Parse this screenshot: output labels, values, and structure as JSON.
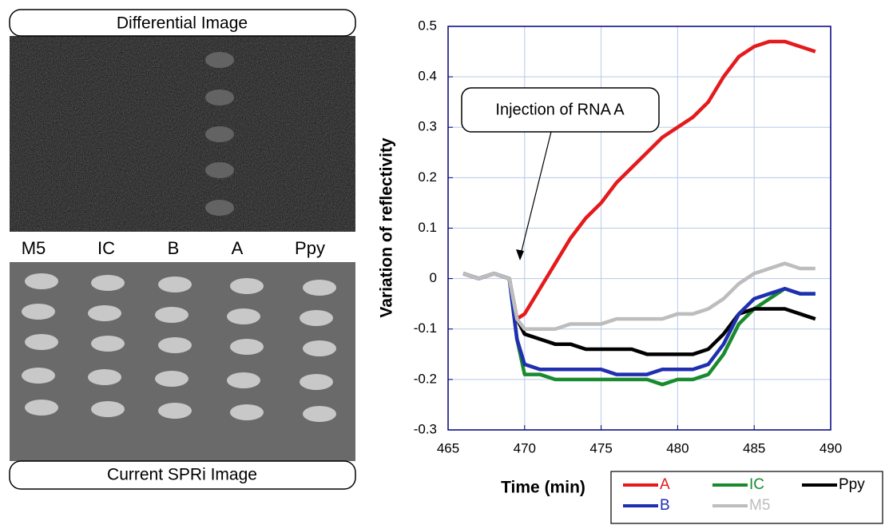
{
  "images": {
    "top_label": "Differential Image",
    "column_labels": [
      "M5",
      "IC",
      "B",
      "A",
      "Ppy"
    ],
    "bottom_label": "Current SPRi Image"
  },
  "chart_data": {
    "type": "line",
    "x_label": "Time (min)",
    "y_label": "Variation of reflectivity",
    "annotation": "Injection of RNA A",
    "x": [
      466,
      467,
      468,
      469,
      469.5,
      470,
      471,
      472,
      473,
      474,
      475,
      476,
      477,
      478,
      479,
      480,
      481,
      482,
      483,
      484,
      485,
      486,
      487,
      488,
      489
    ],
    "series": [
      {
        "name": "A",
        "color": "#e41a1c",
        "values": [
          0.01,
          0.0,
          0.01,
          0.0,
          -0.08,
          -0.07,
          -0.02,
          0.03,
          0.08,
          0.12,
          0.15,
          0.19,
          0.22,
          0.25,
          0.28,
          0.3,
          0.32,
          0.35,
          0.4,
          0.44,
          0.46,
          0.47,
          0.47,
          0.46,
          0.45
        ]
      },
      {
        "name": "IC",
        "color": "#1a8a2e",
        "values": [
          0.01,
          0.0,
          0.01,
          0.0,
          -0.12,
          -0.19,
          -0.19,
          -0.2,
          -0.2,
          -0.2,
          -0.2,
          -0.2,
          -0.2,
          -0.2,
          -0.21,
          -0.2,
          -0.2,
          -0.19,
          -0.15,
          -0.09,
          -0.06,
          -0.04,
          -0.02,
          -0.03,
          -0.03
        ]
      },
      {
        "name": "Ppy",
        "color": "#000000",
        "values": [
          0.01,
          0.0,
          0.01,
          0.0,
          -0.08,
          -0.11,
          -0.12,
          -0.13,
          -0.13,
          -0.14,
          -0.14,
          -0.14,
          -0.14,
          -0.15,
          -0.15,
          -0.15,
          -0.15,
          -0.14,
          -0.11,
          -0.07,
          -0.06,
          -0.06,
          -0.06,
          -0.07,
          -0.08
        ]
      },
      {
        "name": "B",
        "color": "#1f2fb0",
        "values": [
          0.01,
          0.0,
          0.01,
          0.0,
          -0.12,
          -0.17,
          -0.18,
          -0.18,
          -0.18,
          -0.18,
          -0.18,
          -0.19,
          -0.19,
          -0.19,
          -0.18,
          -0.18,
          -0.18,
          -0.17,
          -0.13,
          -0.07,
          -0.04,
          -0.03,
          -0.02,
          -0.03,
          -0.03
        ]
      },
      {
        "name": "M5",
        "color": "#bdbdbd",
        "values": [
          0.01,
          0.0,
          0.01,
          0.0,
          -0.08,
          -0.1,
          -0.1,
          -0.1,
          -0.09,
          -0.09,
          -0.09,
          -0.08,
          -0.08,
          -0.08,
          -0.08,
          -0.07,
          -0.07,
          -0.06,
          -0.04,
          -0.01,
          0.01,
          0.02,
          0.03,
          0.02,
          0.02
        ]
      }
    ],
    "xlim": [
      465,
      490
    ],
    "xticks": [
      465,
      470,
      475,
      480,
      485,
      490
    ],
    "ylim": [
      -0.3,
      0.5
    ],
    "yticks": [
      -0.3,
      -0.2,
      -0.1,
      0,
      0.1,
      0.2,
      0.3,
      0.4,
      0.5
    ],
    "grid": true
  }
}
